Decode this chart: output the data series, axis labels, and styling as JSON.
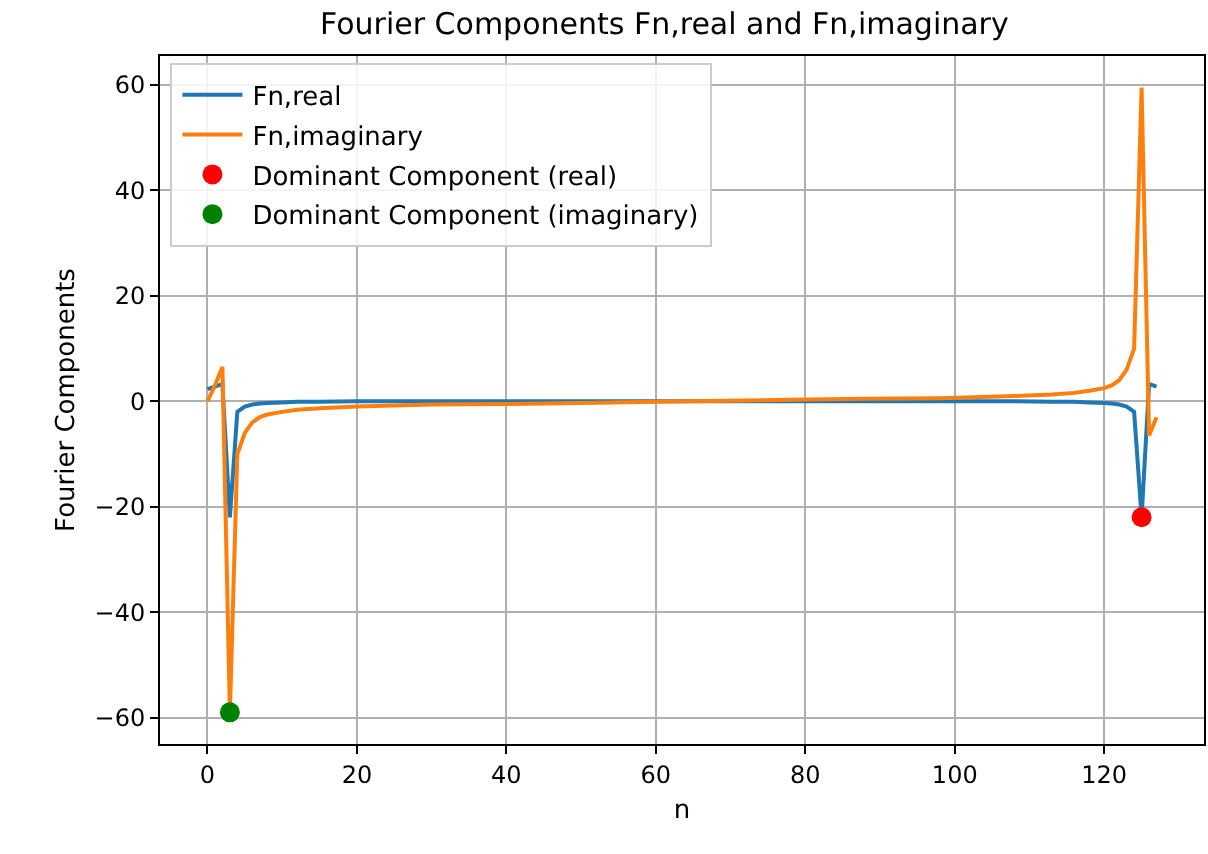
{
  "chart_data": {
    "type": "line",
    "title": "Fourier Components Fn,real and Fn,imaginary",
    "xlabel": "n",
    "ylabel": "Fourier Components",
    "xlim": [
      -6.35,
      133.35
    ],
    "ylim": [
      -65,
      65.5
    ],
    "xticks": [
      0,
      20,
      40,
      60,
      80,
      100,
      120
    ],
    "yticks": [
      {
        "value": -60,
        "label": "−60"
      },
      {
        "value": -40,
        "label": "−40"
      },
      {
        "value": -20,
        "label": "−20"
      },
      0,
      20,
      40,
      60
    ],
    "grid": true,
    "legend": "top left",
    "series": [
      {
        "name": "Fn,real",
        "color": "#1f77b4",
        "x": [
          0,
          1,
          2,
          3,
          4,
          5,
          6,
          7,
          8,
          10,
          12,
          15,
          20,
          30,
          40,
          50,
          64,
          78,
          88,
          98,
          108,
          113,
          116,
          118,
          120,
          121,
          122,
          123,
          124,
          125,
          126,
          127
        ],
        "values": [
          2.3,
          2.8,
          3.3,
          -22,
          -2,
          -1,
          -0.6,
          -0.4,
          -0.3,
          -0.2,
          -0.1,
          -0.1,
          0,
          0,
          0,
          0,
          0,
          0,
          0,
          0,
          0,
          -0.1,
          -0.1,
          -0.2,
          -0.3,
          -0.4,
          -0.6,
          -1,
          -2,
          -22,
          3.3,
          2.8
        ]
      },
      {
        "name": "Fn,imaginary",
        "color": "#ff7f0e",
        "x": [
          0,
          1,
          2,
          3,
          4,
          5,
          6,
          7,
          8,
          10,
          12,
          15,
          20,
          30,
          40,
          50,
          64,
          78,
          88,
          98,
          108,
          113,
          116,
          118,
          120,
          121,
          122,
          123,
          124,
          125,
          126,
          127
        ],
        "values": [
          0,
          3,
          6.5,
          -59,
          -10,
          -6,
          -4,
          -3,
          -2.5,
          -2,
          -1.6,
          -1.3,
          -1,
          -0.6,
          -0.5,
          -0.3,
          0,
          0.3,
          0.5,
          0.6,
          1,
          1.3,
          1.6,
          2,
          2.5,
          3,
          4,
          6,
          10,
          59.5,
          -6.5,
          -3
        ]
      },
      {
        "name": "Dominant Component (real)",
        "type": "scatter",
        "marker": "circle",
        "color": "#ff0000",
        "x": [
          125
        ],
        "values": [
          -22
        ]
      },
      {
        "name": "Dominant Component (imaginary)",
        "type": "scatter",
        "marker": "circle",
        "color": "#008000",
        "x": [
          3
        ],
        "values": [
          -59
        ]
      }
    ]
  }
}
